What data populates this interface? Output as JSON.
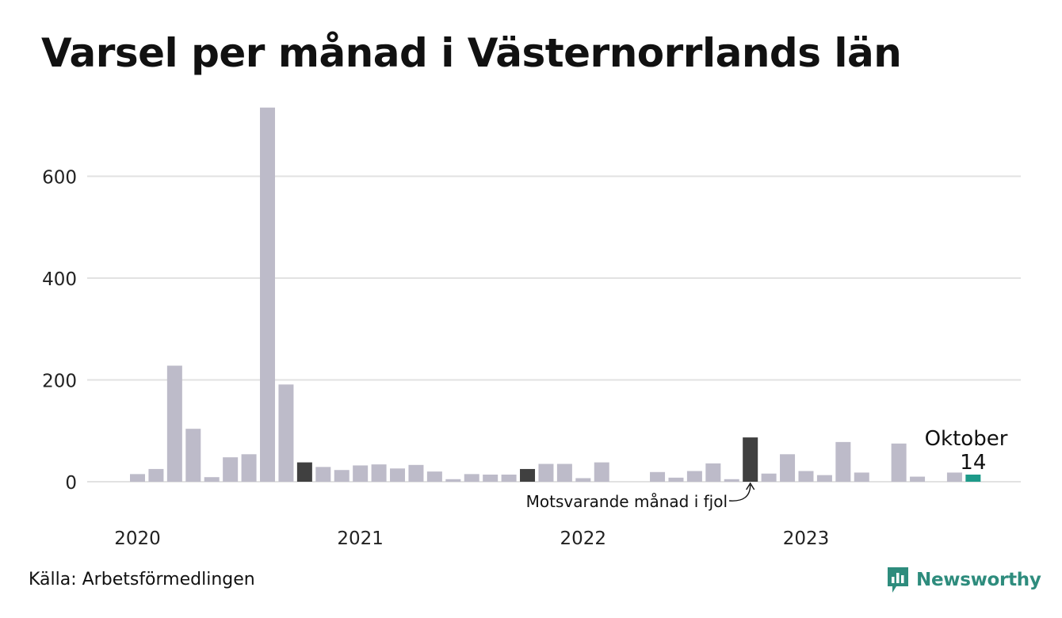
{
  "title": "Varsel per månad i Västernorrlands län",
  "source": "Källa: Arbetsförmedlingen",
  "brand": {
    "name": "Newsworthy",
    "icon": "newsworthy-logo-icon",
    "color": "#2e8c7d"
  },
  "chart_data": {
    "type": "bar",
    "title": "Varsel per månad i Västernorrlands län",
    "xlabel": "",
    "ylabel": "",
    "ylim": [
      0,
      740
    ],
    "yticks": [
      0,
      200,
      400,
      600
    ],
    "grid": true,
    "year_labels": [
      "2020",
      "2021",
      "2022",
      "2023"
    ],
    "categories": [
      "2020-01",
      "2020-02",
      "2020-03",
      "2020-04",
      "2020-05",
      "2020-06",
      "2020-07",
      "2020-08",
      "2020-09",
      "2020-10",
      "2020-11",
      "2020-12",
      "2021-01",
      "2021-02",
      "2021-03",
      "2021-04",
      "2021-05",
      "2021-06",
      "2021-07",
      "2021-08",
      "2021-09",
      "2021-10",
      "2021-11",
      "2021-12",
      "2022-01",
      "2022-02",
      "2022-03",
      "2022-04",
      "2022-05",
      "2022-06",
      "2022-07",
      "2022-08",
      "2022-09",
      "2022-10",
      "2022-11",
      "2022-12",
      "2023-01",
      "2023-02",
      "2023-03",
      "2023-04",
      "2023-05",
      "2023-06",
      "2023-07",
      "2023-08",
      "2023-09",
      "2023-10"
    ],
    "values": [
      15,
      25,
      228,
      104,
      9,
      48,
      54,
      735,
      191,
      38,
      29,
      23,
      32,
      34,
      26,
      33,
      20,
      5,
      15,
      14,
      14,
      25,
      35,
      35,
      7,
      38,
      0,
      0,
      19,
      8,
      21,
      36,
      5,
      87,
      16,
      54,
      21,
      13,
      78,
      18,
      0,
      75,
      10,
      0,
      18,
      14
    ],
    "highlight": {
      "comparison_indices": [
        9,
        21,
        33
      ],
      "current_index": 45
    },
    "colors": {
      "default": "#bdbbc9",
      "comparison": "#404040",
      "current": "#1d9a89",
      "grid": "#e2e2e2"
    },
    "annotations": {
      "current_month": "Oktober",
      "current_value": "14",
      "comparison_label": "Motsvarande månad i fjol"
    }
  }
}
